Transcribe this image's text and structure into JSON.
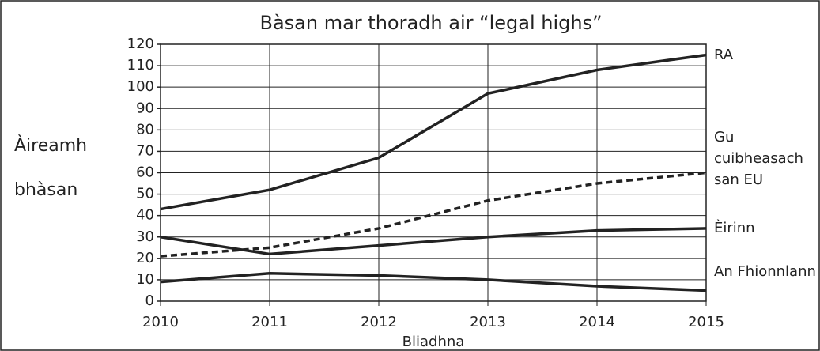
{
  "chart_data": {
    "type": "line",
    "title": "Bàsan mar thoradh air “legal highs”",
    "x_label": "Bliadhna",
    "y_label": "Àireamh bhàsan",
    "categories": [
      "2010",
      "2011",
      "2012",
      "2013",
      "2014",
      "2015"
    ],
    "ylim": [
      0,
      120
    ],
    "yticks": [
      0,
      10,
      20,
      30,
      40,
      50,
      60,
      70,
      80,
      90,
      100,
      110,
      120
    ],
    "grid": true,
    "series": [
      {
        "name": "RA",
        "color": "#222222",
        "dashed": false,
        "values": [
          43,
          52,
          67,
          97,
          108,
          115
        ]
      },
      {
        "name": "Gu cuibheasach san EU",
        "color": "#222222",
        "dashed": true,
        "values": [
          21,
          25,
          34,
          47,
          55,
          60
        ]
      },
      {
        "name": "Èirinn",
        "color": "#222222",
        "dashed": false,
        "values": [
          30,
          22,
          26,
          30,
          33,
          34
        ]
      },
      {
        "name": "An Fhionnlann",
        "color": "#222222",
        "dashed": false,
        "values": [
          9,
          13,
          12,
          10,
          7,
          5
        ]
      }
    ]
  }
}
